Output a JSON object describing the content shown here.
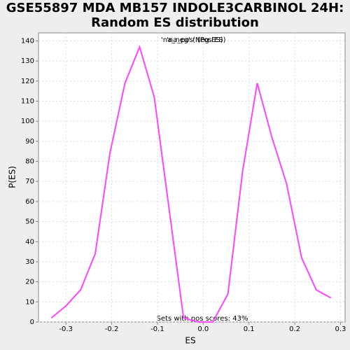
{
  "chart_data": {
    "type": "line",
    "title": "GSE55897 MDA MB157 INDOLE3CARBINOL 24H:",
    "subtitle": "Random ES distribution",
    "xlabel": "ES",
    "ylabel": "P(ES)",
    "legend_labels": [
      "'na_neg' (Neg ES)",
      "'na_pos' (Pos ES)"
    ],
    "legend_color": "#8a2be2",
    "annotation": "Sets with pos scores: 43%",
    "x": [
      -0.332,
      -0.3,
      -0.268,
      -0.236,
      -0.204,
      -0.171,
      -0.139,
      -0.107,
      -0.075,
      -0.043,
      -0.011,
      0.021,
      0.054,
      0.086,
      0.118,
      0.15,
      0.182,
      0.215,
      0.247,
      0.279
    ],
    "series": [
      {
        "color": "#ff44ff",
        "values": [
          2,
          8,
          16,
          34,
          84,
          119,
          137,
          112,
          57,
          2,
          0,
          0,
          14,
          75,
          119,
          92,
          69,
          32,
          16,
          12
        ]
      }
    ],
    "xlim": [
      -0.36,
      0.31
    ],
    "xticks": [
      -0.3,
      -0.2,
      -0.1,
      {
        "value": 0,
        "label": "0.0"
      },
      0.1,
      0.2,
      0.3
    ],
    "ylim": [
      0,
      144
    ],
    "yticks": [
      0,
      10,
      20,
      30,
      40,
      50,
      60,
      70,
      80,
      90,
      100,
      110,
      120,
      130,
      140
    ],
    "grid": true
  }
}
